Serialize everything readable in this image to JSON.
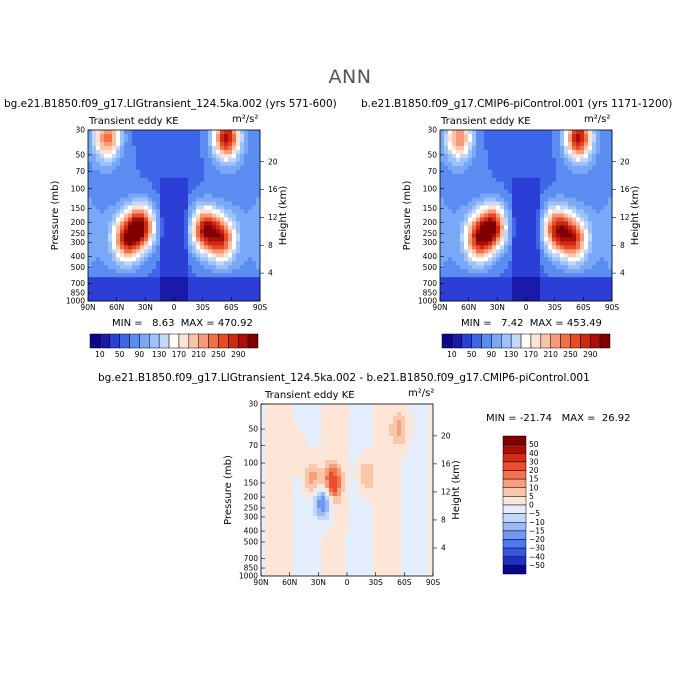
{
  "title": "ANN",
  "colors": {
    "palette": [
      "#08088a",
      "#1a1aa8",
      "#2b3fd6",
      "#3f66e8",
      "#5a8cf2",
      "#7aa8f6",
      "#9dc2f9",
      "#c2d9fc",
      "#ffffff",
      "#fde3d6",
      "#fbc4a8",
      "#f89a78",
      "#f27048",
      "#e84a28",
      "#cc2a12",
      "#a80f08",
      "#800000"
    ],
    "diff_palette": [
      "#08088a",
      "#1f2fc4",
      "#3355e0",
      "#4a78ef",
      "#6f98f5",
      "#9bb9f8",
      "#c3d6fb",
      "#e4eefd",
      "#fde5d8",
      "#fbc7ac",
      "#f7a07c",
      "#f37350",
      "#ec4d2c",
      "#d42c14",
      "#a80f08",
      "#800000"
    ]
  },
  "chart_data": [
    {
      "type": "heatmap",
      "id": "top-left",
      "title": "bg.e21.B1850.f09_g17.LIGtransient_124.5ka.002 (yrs 571-600)",
      "left_label": "Transient eddy KE",
      "units": "m²/s²",
      "ylabel": "Pressure (mb)",
      "ylabel_right": "Height (km)",
      "xticks": [
        "90N",
        "60N",
        "30N",
        "0",
        "30S",
        "60S",
        "90S"
      ],
      "yticks": [
        "30",
        "50",
        "70",
        "100",
        "150",
        "200",
        "250",
        "300",
        "400",
        "500",
        "700",
        "850",
        "1000"
      ],
      "right_ticks": [
        "20",
        "16",
        "12",
        "8",
        "4"
      ],
      "min_label": "MIN =",
      "min_value": "8.63",
      "max_label": "MAX =",
      "max_value": "470.92",
      "colorbar_labels": [
        "10",
        "50",
        "90",
        "130",
        "170",
        "210",
        "250",
        "290"
      ],
      "features": [
        {
          "lat": 35,
          "p": 220,
          "value": 290
        },
        {
          "lat": 50,
          "p": 280,
          "value": 240
        },
        {
          "lat": -32,
          "p": 230,
          "value": 270
        },
        {
          "lat": -50,
          "p": 280,
          "value": 240
        },
        {
          "lat": -55,
          "p": 35,
          "value": 290
        },
        {
          "lat": 70,
          "p": 35,
          "value": 230
        }
      ]
    },
    {
      "type": "heatmap",
      "id": "top-right",
      "title": "b.e21.B1850.f09_g17.CMIP6-piControl.001 (yrs 1171-1200)",
      "left_label": "Transient eddy KE",
      "units": "m²/s²",
      "ylabel": "Pressure (mb)",
      "ylabel_right": "Height (km)",
      "xticks": [
        "90N",
        "60N",
        "30N",
        "0",
        "30S",
        "60S",
        "90S"
      ],
      "yticks": [
        "30",
        "50",
        "70",
        "100",
        "150",
        "200",
        "250",
        "300",
        "400",
        "500",
        "700",
        "850",
        "1000"
      ],
      "right_ticks": [
        "20",
        "16",
        "12",
        "8",
        "4"
      ],
      "min_label": "MIN =",
      "min_value": "7.42",
      "max_label": "MAX =",
      "max_value": "453.49",
      "colorbar_labels": [
        "10",
        "50",
        "90",
        "130",
        "170",
        "210",
        "250",
        "290"
      ],
      "features": [
        {
          "lat": 35,
          "p": 220,
          "value": 280
        },
        {
          "lat": 50,
          "p": 280,
          "value": 240
        },
        {
          "lat": -32,
          "p": 230,
          "value": 265
        },
        {
          "lat": -50,
          "p": 280,
          "value": 240
        },
        {
          "lat": -55,
          "p": 35,
          "value": 290
        },
        {
          "lat": 70,
          "p": 35,
          "value": 220
        }
      ]
    },
    {
      "type": "heatmap",
      "id": "bottom",
      "title": "bg.e21.B1850.f09_g17.LIGtransient_124.5ka.002 - b.e21.B1850.f09_g17.CMIP6-piControl.001",
      "left_label": "Transient eddy KE",
      "units": "m²/s²",
      "ylabel": "Pressure (mb)",
      "ylabel_right": "Height (km)",
      "xticks": [
        "90N",
        "60N",
        "30N",
        "0",
        "30S",
        "60S",
        "90S"
      ],
      "yticks": [
        "30",
        "50",
        "70",
        "100",
        "150",
        "200",
        "250",
        "300",
        "400",
        "500",
        "700",
        "850",
        "1000"
      ],
      "right_ticks": [
        "20",
        "16",
        "12",
        "8",
        "4"
      ],
      "min_label": "MIN =",
      "min_value": "-21.74",
      "max_label": "MAX =",
      "max_value": "26.92",
      "colorbar_labels": [
        "50",
        "40",
        "30",
        "20",
        "15",
        "10",
        "5",
        "0",
        "−5",
        "−10",
        "−15",
        "−20",
        "−30",
        "−40",
        "−50"
      ],
      "features": [
        {
          "lat": 15,
          "p": 150,
          "value": 25
        },
        {
          "lat": 36,
          "p": 140,
          "value": 15
        },
        {
          "lat": 25,
          "p": 220,
          "value": -22
        },
        {
          "lat": -20,
          "p": 130,
          "value": 12
        },
        {
          "lat": -55,
          "p": 50,
          "value": 12
        },
        {
          "lat": 50,
          "p": 80,
          "value": 5
        }
      ]
    }
  ]
}
